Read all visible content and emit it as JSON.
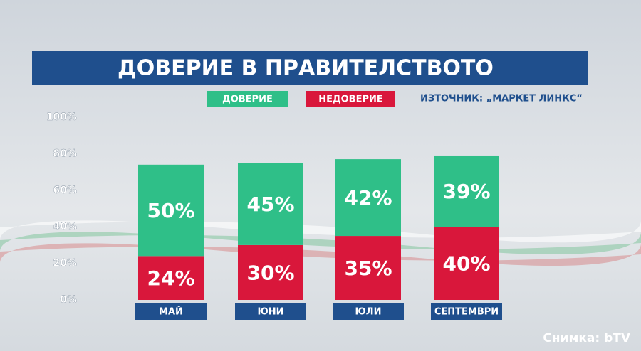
{
  "chart_data": {
    "type": "stacked_bar",
    "title": "ДОВЕРИЕ В ПРАВИТЕЛСТВОТО",
    "source": "ИЗТОЧНИК: „МАРКЕТ ЛИНКС“",
    "credit": "Снимка: bTV",
    "categories": [
      "МАЙ",
      "ЮНИ",
      "ЮЛИ",
      "СЕПТЕМВРИ"
    ],
    "series": [
      {
        "name": "НЕДОВЕРИЕ",
        "color": "#d9173b",
        "values": [
          24,
          30,
          35,
          40
        ],
        "value_labels": [
          "24%",
          "30%",
          "35%",
          "40%"
        ]
      },
      {
        "name": "ДОВЕРИЕ",
        "color": "#2fbf88",
        "values": [
          50,
          45,
          42,
          39
        ],
        "value_labels": [
          "50%",
          "45%",
          "42%",
          "39%"
        ]
      }
    ],
    "legend_order": [
      1,
      0
    ],
    "ylim": [
      0,
      100
    ],
    "yticks": [
      {
        "value": 0,
        "label": "0%"
      },
      {
        "value": 20,
        "label": "20%"
      },
      {
        "value": 40,
        "label": "40%"
      },
      {
        "value": 60,
        "label": "60%"
      },
      {
        "value": 80,
        "label": "80%"
      },
      {
        "value": 100,
        "label": "100%"
      }
    ]
  }
}
